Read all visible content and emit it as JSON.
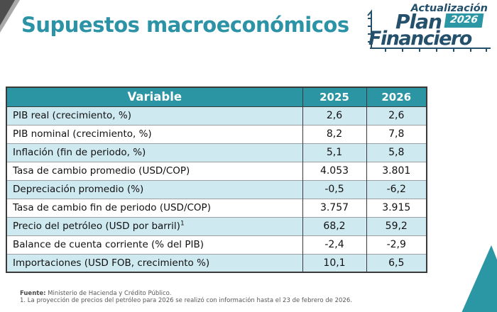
{
  "title": "Supuestos macroeconómicos",
  "logo": {
    "line1": "Actualización",
    "line2": "Plan",
    "badge": "2026",
    "line3": "Financiero"
  },
  "table": {
    "headers": [
      "Variable",
      "2025",
      "2026"
    ],
    "rows": [
      {
        "variable": "PIB real (crecimiento, %)",
        "y2025": "2,6",
        "y2026": "2,6"
      },
      {
        "variable": "PIB nominal (crecimiento, %)",
        "y2025": "8,2",
        "y2026": "7,8"
      },
      {
        "variable": "Inflación (fin de periodo, %)",
        "y2025": "5,1",
        "y2026": "5,8"
      },
      {
        "variable": "Tasa de cambio promedio (USD/COP)",
        "y2025": "4.053",
        "y2026": "3.801"
      },
      {
        "variable": "Depreciación promedio (%)",
        "y2025": "-0,5",
        "y2026": "-6,2"
      },
      {
        "variable": "Tasa de cambio fin de periodo (USD/COP)",
        "y2025": "3.757",
        "y2026": "3.915"
      },
      {
        "variable": "Precio del petróleo (USD por barril)¹",
        "y2025": "68,2",
        "y2026": "59,2"
      },
      {
        "variable": "Balance de cuenta corriente (% del PIB)",
        "y2025": "-2,4",
        "y2026": "-2,9"
      },
      {
        "variable": "Importaciones (USD FOB, crecimiento %)",
        "y2025": "10,1",
        "y2026": "6,5"
      }
    ]
  },
  "footer": {
    "source_label": "Fuente:",
    "source_text": " Ministerio de Hacienda y Crédito Público.",
    "footnote": "1. La proyección de precios del petróleo para 2026 se realizó con información hasta el 23 de febrero de 2026."
  },
  "colors": {
    "teal": "#2b95a3",
    "navy": "#24506b",
    "row_alt": "#cfe9f1"
  }
}
